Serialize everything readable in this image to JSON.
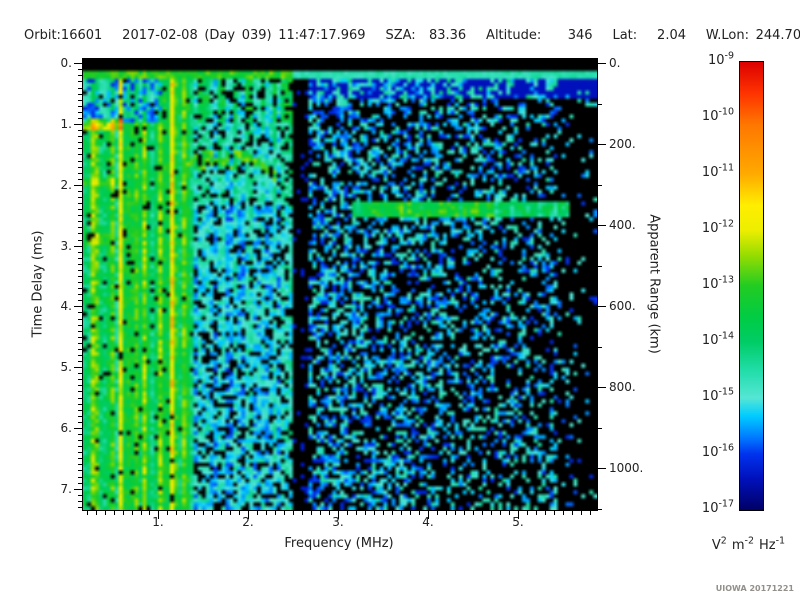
{
  "header": {
    "line": "Orbit:16601   2017-02-08 (Day 039) 11:47:17.969   SZA:  83.36   Altitude:    346   Lat:   2.04   W.Lon: 244.70"
  },
  "watermark": "UIOWA 20171221",
  "chart_data": {
    "type": "heatmap",
    "subtype": "radar-sounder-ionogram-spectrogram",
    "title": "",
    "xlabel": "Frequency (MHz)",
    "ylabel": "Time Delay (ms)",
    "y2label": "Apparent Range (km)",
    "xlim": [
      0.16,
      5.88
    ],
    "ylim": [
      -0.07,
      7.35
    ],
    "km_per_ms": 150,
    "grid_lines": "off",
    "xticks": {
      "values": [
        1,
        2,
        3,
        4,
        5
      ],
      "labels": [
        "1.",
        "2.",
        "3.",
        "4.",
        "5."
      ],
      "minor_step": 0.1
    },
    "yticks": {
      "values": [
        0,
        1,
        2,
        3,
        4,
        5,
        6,
        7
      ],
      "labels": [
        "0.",
        "1.",
        "2.",
        "3.",
        "4.",
        "5.",
        "6.",
        "7."
      ],
      "minor_step": 0.1
    },
    "y2ticks": {
      "major_step_km": 200,
      "minor_step_km": 100,
      "max_km": 1100,
      "labels": [
        "0.",
        "200.",
        "400.",
        "600.",
        "800.",
        "1000."
      ]
    },
    "colorbar": {
      "scale": "log10",
      "min": "1e-17",
      "max": "1e-9",
      "tick_exponents": [
        "-9",
        "-10",
        "-11",
        "-12",
        "-13",
        "-14",
        "-15",
        "-16",
        "-17"
      ],
      "unit_parts": [
        {
          "base": "V",
          "exp": "2"
        },
        {
          "base": "m",
          "exp": "-2"
        },
        {
          "base": "Hz",
          "exp": "-1"
        }
      ],
      "stops": [
        [
          0.0,
          "#dd0000"
        ],
        [
          0.07,
          "#ff3300"
        ],
        [
          0.14,
          "#ff7700"
        ],
        [
          0.25,
          "#ffaa00"
        ],
        [
          0.32,
          "#ffee00"
        ],
        [
          0.375,
          "#eeee00"
        ],
        [
          0.43,
          "#99dd00"
        ],
        [
          0.5,
          "#22cc22"
        ],
        [
          0.57,
          "#00cc44"
        ],
        [
          0.625,
          "#00cc66"
        ],
        [
          0.69,
          "#22ddaa"
        ],
        [
          0.75,
          "#55e6d5"
        ],
        [
          0.79,
          "#00ccff"
        ],
        [
          0.84,
          "#0077ff"
        ],
        [
          0.875,
          "#0033ee"
        ],
        [
          0.93,
          "#0011bb"
        ],
        [
          1.0,
          "#000066"
        ]
      ]
    },
    "features": {
      "seed": 20171221,
      "grid": [
        130,
        114
      ],
      "black_threshold": 0.045,
      "top_black_ms": 0.1,
      "transmit_pulse": {
        "t": [
          0.1,
          0.27
        ]
      },
      "plasma_band": {
        "fmax": 1.38,
        "stripes": [
          0.3,
          0.45,
          0.58,
          0.72,
          0.88,
          1.02,
          1.16,
          1.3
        ],
        "bright": [
          0.58,
          1.16
        ],
        "dark_top_tmax": 0.95,
        "harmonics": {
          "times": [
            1.0,
            1.95,
            2.9
          ],
          "fmax": [
            0.62,
            0.55,
            0.45
          ],
          "amps": [
            0.2,
            0.11,
            0.09
          ]
        }
      },
      "rfi_gap": [
        2.5,
        2.68
      ],
      "right_dark_fmin": 5.45,
      "echo_band": {
        "f": [
          3.15,
          5.55
        ],
        "t": [
          2.28,
          2.55
        ],
        "bright_f": [
          3.3,
          4.75
        ],
        "tail_t": [
          2.55,
          2.85
        ],
        "tail_f": [
          3.3,
          4.8
        ]
      },
      "trace_segments": [
        {
          "points": [
            [
              1.28,
              1.63
            ],
            [
              1.5,
              1.52
            ],
            [
              1.72,
              1.47
            ],
            [
              1.9,
              1.5
            ],
            [
              2.1,
              1.62
            ],
            [
              2.35,
              1.92
            ]
          ]
        },
        {
          "points": [
            [
              1.3,
              1.73
            ],
            [
              1.5,
              1.66
            ],
            [
              1.7,
              1.63
            ],
            [
              1.86,
              1.67
            ]
          ]
        }
      ]
    }
  }
}
